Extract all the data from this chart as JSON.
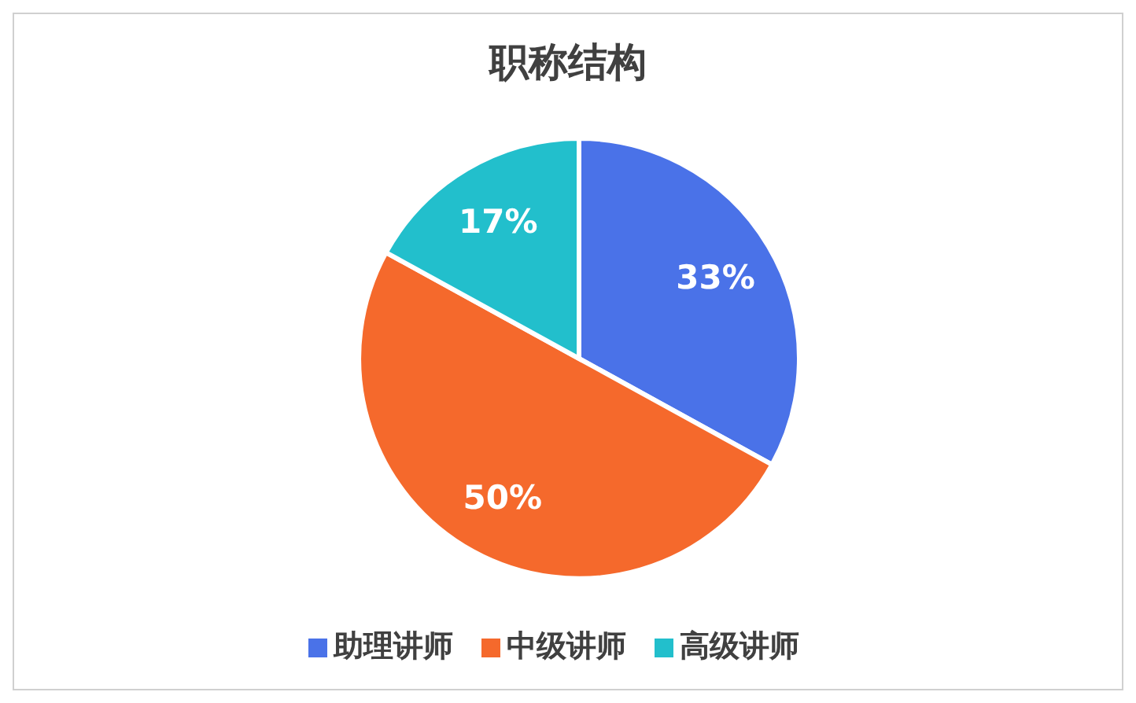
{
  "chart_data": {
    "type": "pie",
    "title": "职称结构",
    "categories": [
      "助理讲师",
      "中级讲师",
      "高级讲师"
    ],
    "values": [
      33,
      50,
      17
    ],
    "colors": [
      "#4a72e8",
      "#f5692c",
      "#22bfcc"
    ],
    "value_labels": [
      "33%",
      "50%",
      "17%"
    ],
    "legend": "bottom"
  }
}
